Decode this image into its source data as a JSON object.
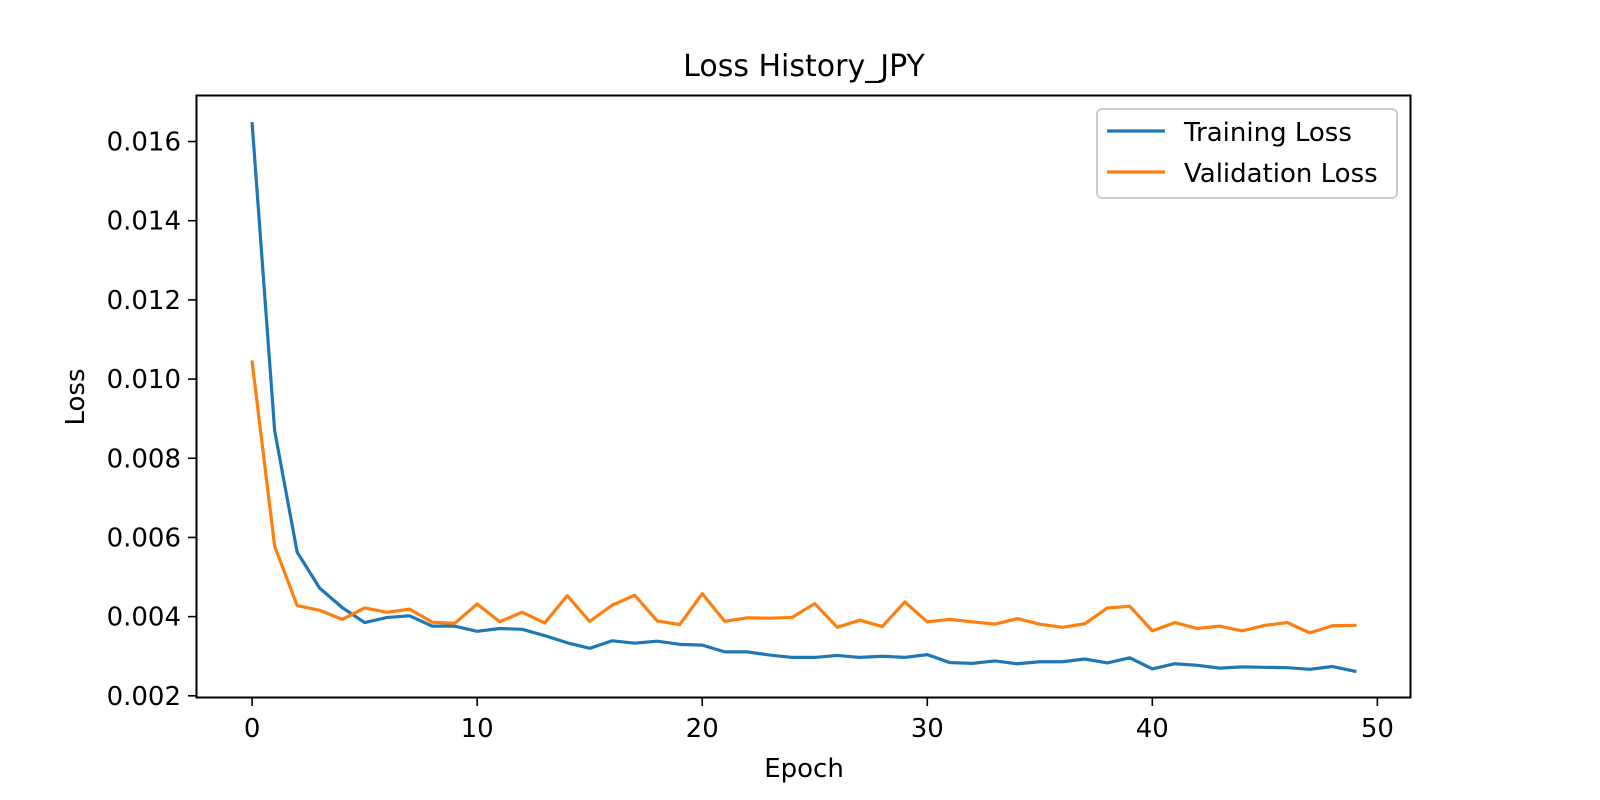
{
  "chart_data": {
    "type": "line",
    "title": "Loss History_JPY",
    "xlabel": "Epoch",
    "ylabel": "Loss",
    "xlim": [
      -2.45,
      51.45
    ],
    "ylim": [
      0.00197,
      0.01715
    ],
    "xticks": [
      0,
      10,
      20,
      30,
      40,
      50
    ],
    "yticks": [
      0.002,
      0.004,
      0.006,
      0.008,
      0.01,
      0.012,
      0.014,
      0.016
    ],
    "ytick_labels": [
      "0.002",
      "0.004",
      "0.006",
      "0.008",
      "0.010",
      "0.012",
      "0.014",
      "0.016"
    ],
    "grid": false,
    "legend_position": "top-right",
    "x": [
      0,
      1,
      2,
      3,
      4,
      5,
      6,
      7,
      8,
      9,
      10,
      11,
      12,
      13,
      14,
      15,
      16,
      17,
      18,
      19,
      20,
      21,
      22,
      23,
      24,
      25,
      26,
      27,
      28,
      29,
      30,
      31,
      32,
      33,
      34,
      35,
      36,
      37,
      38,
      39,
      40,
      41,
      42,
      43,
      44,
      45,
      46,
      47,
      48,
      49
    ],
    "series": [
      {
        "name": "Training Loss",
        "color": "#1f77b4",
        "values": [
          0.01645,
          0.0087,
          0.00563,
          0.00472,
          0.00423,
          0.00385,
          0.00398,
          0.00402,
          0.00376,
          0.00376,
          0.00363,
          0.0037,
          0.00368,
          0.00352,
          0.00334,
          0.0032,
          0.00339,
          0.00333,
          0.00338,
          0.0033,
          0.00328,
          0.00311,
          0.00311,
          0.00303,
          0.00297,
          0.00297,
          0.00302,
          0.00297,
          0.003,
          0.00297,
          0.00304,
          0.00284,
          0.00282,
          0.00288,
          0.00281,
          0.00286,
          0.00286,
          0.00293,
          0.00283,
          0.00296,
          0.00268,
          0.00281,
          0.00277,
          0.0027,
          0.00273,
          0.00272,
          0.00271,
          0.00267,
          0.00274,
          0.00262
        ]
      },
      {
        "name": "Validation Loss",
        "color": "#ff7f0e",
        "values": [
          0.01043,
          0.00578,
          0.00428,
          0.00416,
          0.00393,
          0.00422,
          0.00411,
          0.00419,
          0.00386,
          0.00383,
          0.00432,
          0.00387,
          0.00411,
          0.00384,
          0.00453,
          0.00388,
          0.00429,
          0.00454,
          0.00389,
          0.0038,
          0.00458,
          0.00388,
          0.00397,
          0.00396,
          0.00398,
          0.00433,
          0.00373,
          0.00391,
          0.00375,
          0.00437,
          0.00387,
          0.00393,
          0.00387,
          0.00381,
          0.00395,
          0.00381,
          0.00373,
          0.00382,
          0.00422,
          0.00426,
          0.00364,
          0.00385,
          0.0037,
          0.00376,
          0.00364,
          0.00378,
          0.00385,
          0.00359,
          0.00377,
          0.00378
        ]
      }
    ]
  }
}
